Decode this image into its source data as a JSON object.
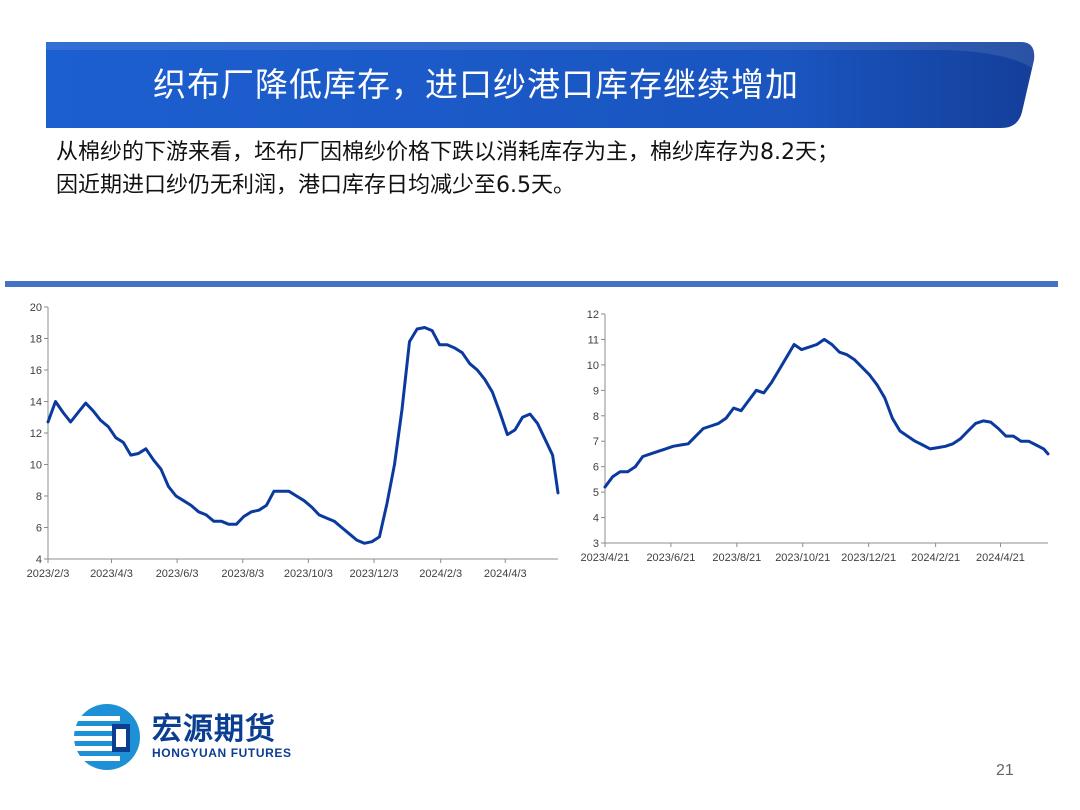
{
  "slide": {
    "title": "织布厂降低库存，进口纱港口库存继续增加",
    "summary_lines": [
      "从棉纱的下游来看，坯布厂因棉纱价格下跌以消耗库存为主，棉纱库存为8.2天；",
      "因近期进口纱仍无利润，港口库存日均减少至6.5天。"
    ],
    "page_number": "21",
    "colors": {
      "banner": "#1a55c0",
      "series": "#0b3a9e",
      "rule": "#4472c4"
    }
  },
  "logo": {
    "name_cn": "宏源期货",
    "name_en": "HONGYUAN FUTURES"
  },
  "chart_data": [
    {
      "type": "line",
      "title": "",
      "xlabel": "",
      "ylabel": "",
      "ylim": [
        4,
        20
      ],
      "yticks": [
        4,
        6,
        8,
        10,
        12,
        14,
        16,
        18,
        20
      ],
      "xlim": [
        "2023/2/3",
        "2024/5/22"
      ],
      "xtick_labels": [
        "2023/2/3",
        "2023/4/3",
        "2023/6/3",
        "2023/8/3",
        "2023/10/3",
        "2023/12/3",
        "2024/2/3",
        "2024/4/3"
      ],
      "grid": false,
      "legend": "none",
      "series": [
        {
          "x": [
            "2023/2/3",
            "2023/2/10",
            "2023/2/17",
            "2023/2/24",
            "2023/3/3",
            "2023/3/10",
            "2023/3/17",
            "2023/3/24",
            "2023/3/31",
            "2023/4/7",
            "2023/4/14",
            "2023/4/21",
            "2023/4/28",
            "2023/5/5",
            "2023/5/12",
            "2023/5/19",
            "2023/5/26",
            "2023/6/2",
            "2023/6/9",
            "2023/6/16",
            "2023/6/23",
            "2023/6/30",
            "2023/7/7",
            "2023/7/14",
            "2023/7/21",
            "2023/7/28",
            "2023/8/4",
            "2023/8/11",
            "2023/8/18",
            "2023/8/25",
            "2023/9/1",
            "2023/9/8",
            "2023/9/15",
            "2023/9/22",
            "2023/9/29",
            "2023/10/6",
            "2023/10/13",
            "2023/10/20",
            "2023/10/27",
            "2023/11/3",
            "2023/11/10",
            "2023/11/17",
            "2023/11/24",
            "2023/12/1",
            "2023/12/8",
            "2023/12/15",
            "2023/12/22",
            "2023/12/29",
            "2024/1/5",
            "2024/1/12",
            "2024/1/19",
            "2024/1/26",
            "2024/2/2",
            "2024/2/9",
            "2024/2/16",
            "2024/2/23",
            "2024/3/1",
            "2024/3/8",
            "2024/3/15",
            "2024/3/22",
            "2024/3/29",
            "2024/4/5",
            "2024/4/12",
            "2024/4/19",
            "2024/4/26",
            "2024/5/3",
            "2024/5/10",
            "2024/5/17",
            "2024/5/22"
          ],
          "y": [
            12.7,
            14.0,
            13.3,
            12.7,
            13.3,
            13.9,
            13.4,
            12.8,
            12.4,
            11.7,
            11.4,
            10.6,
            10.7,
            11.0,
            10.3,
            9.7,
            8.6,
            8.0,
            7.7,
            7.4,
            7.0,
            6.8,
            6.4,
            6.4,
            6.2,
            6.2,
            6.7,
            7.0,
            7.1,
            7.4,
            8.3,
            8.3,
            8.3,
            8.0,
            7.7,
            7.3,
            6.8,
            6.6,
            6.4,
            6.0,
            5.6,
            5.2,
            5.0,
            5.1,
            5.4,
            7.5,
            10.0,
            13.5,
            17.8,
            18.6,
            18.7,
            18.5,
            17.6,
            17.6,
            17.4,
            17.1,
            16.4,
            16.0,
            15.4,
            14.6,
            13.3,
            11.9,
            12.2,
            13.0,
            13.2,
            12.6,
            11.6,
            10.6,
            8.2
          ]
        }
      ]
    },
    {
      "type": "line",
      "title": "",
      "xlabel": "",
      "ylabel": "",
      "ylim": [
        3,
        12
      ],
      "yticks": [
        3,
        4,
        5,
        6,
        7,
        8,
        9,
        10,
        11,
        12
      ],
      "xlim": [
        "2023/4/21",
        "2024/6/4"
      ],
      "xtick_labels": [
        "2023/4/21",
        "2023/6/21",
        "2023/8/21",
        "2023/10/21",
        "2023/12/21",
        "2024/2/21",
        "2024/4/21"
      ],
      "grid": false,
      "legend": "none",
      "series": [
        {
          "x": [
            "2023/4/21",
            "2023/4/28",
            "2023/5/5",
            "2023/5/12",
            "2023/5/19",
            "2023/5/26",
            "2023/6/2",
            "2023/6/9",
            "2023/6/16",
            "2023/6/23",
            "2023/6/30",
            "2023/7/7",
            "2023/7/14",
            "2023/7/21",
            "2023/7/28",
            "2023/8/4",
            "2023/8/11",
            "2023/8/18",
            "2023/8/25",
            "2023/9/1",
            "2023/9/8",
            "2023/9/15",
            "2023/9/22",
            "2023/9/29",
            "2023/10/6",
            "2023/10/13",
            "2023/10/20",
            "2023/10/27",
            "2023/11/3",
            "2023/11/10",
            "2023/11/17",
            "2023/11/24",
            "2023/12/1",
            "2023/12/8",
            "2023/12/15",
            "2023/12/22",
            "2023/12/29",
            "2024/1/5",
            "2024/1/12",
            "2024/1/19",
            "2024/1/26",
            "2024/2/2",
            "2024/2/9",
            "2024/2/16",
            "2024/2/23",
            "2024/3/1",
            "2024/3/8",
            "2024/3/15",
            "2024/3/22",
            "2024/3/29",
            "2024/4/5",
            "2024/4/12",
            "2024/4/19",
            "2024/4/26",
            "2024/5/3",
            "2024/5/10",
            "2024/5/17",
            "2024/5/24",
            "2024/5/31",
            "2024/6/4"
          ],
          "y": [
            5.2,
            5.6,
            5.8,
            5.8,
            6.0,
            6.4,
            6.5,
            6.6,
            6.7,
            6.8,
            6.85,
            6.9,
            7.2,
            7.5,
            7.6,
            7.7,
            7.9,
            8.3,
            8.2,
            8.6,
            9.0,
            8.9,
            9.3,
            9.8,
            10.3,
            10.8,
            10.6,
            10.7,
            10.8,
            11.0,
            10.8,
            10.5,
            10.4,
            10.2,
            9.9,
            9.6,
            9.2,
            8.7,
            7.9,
            7.4,
            7.2,
            7.0,
            6.85,
            6.7,
            6.75,
            6.8,
            6.9,
            7.1,
            7.4,
            7.7,
            7.8,
            7.75,
            7.5,
            7.2,
            7.2,
            7.0,
            7.0,
            6.85,
            6.7,
            6.5
          ]
        }
      ]
    }
  ]
}
